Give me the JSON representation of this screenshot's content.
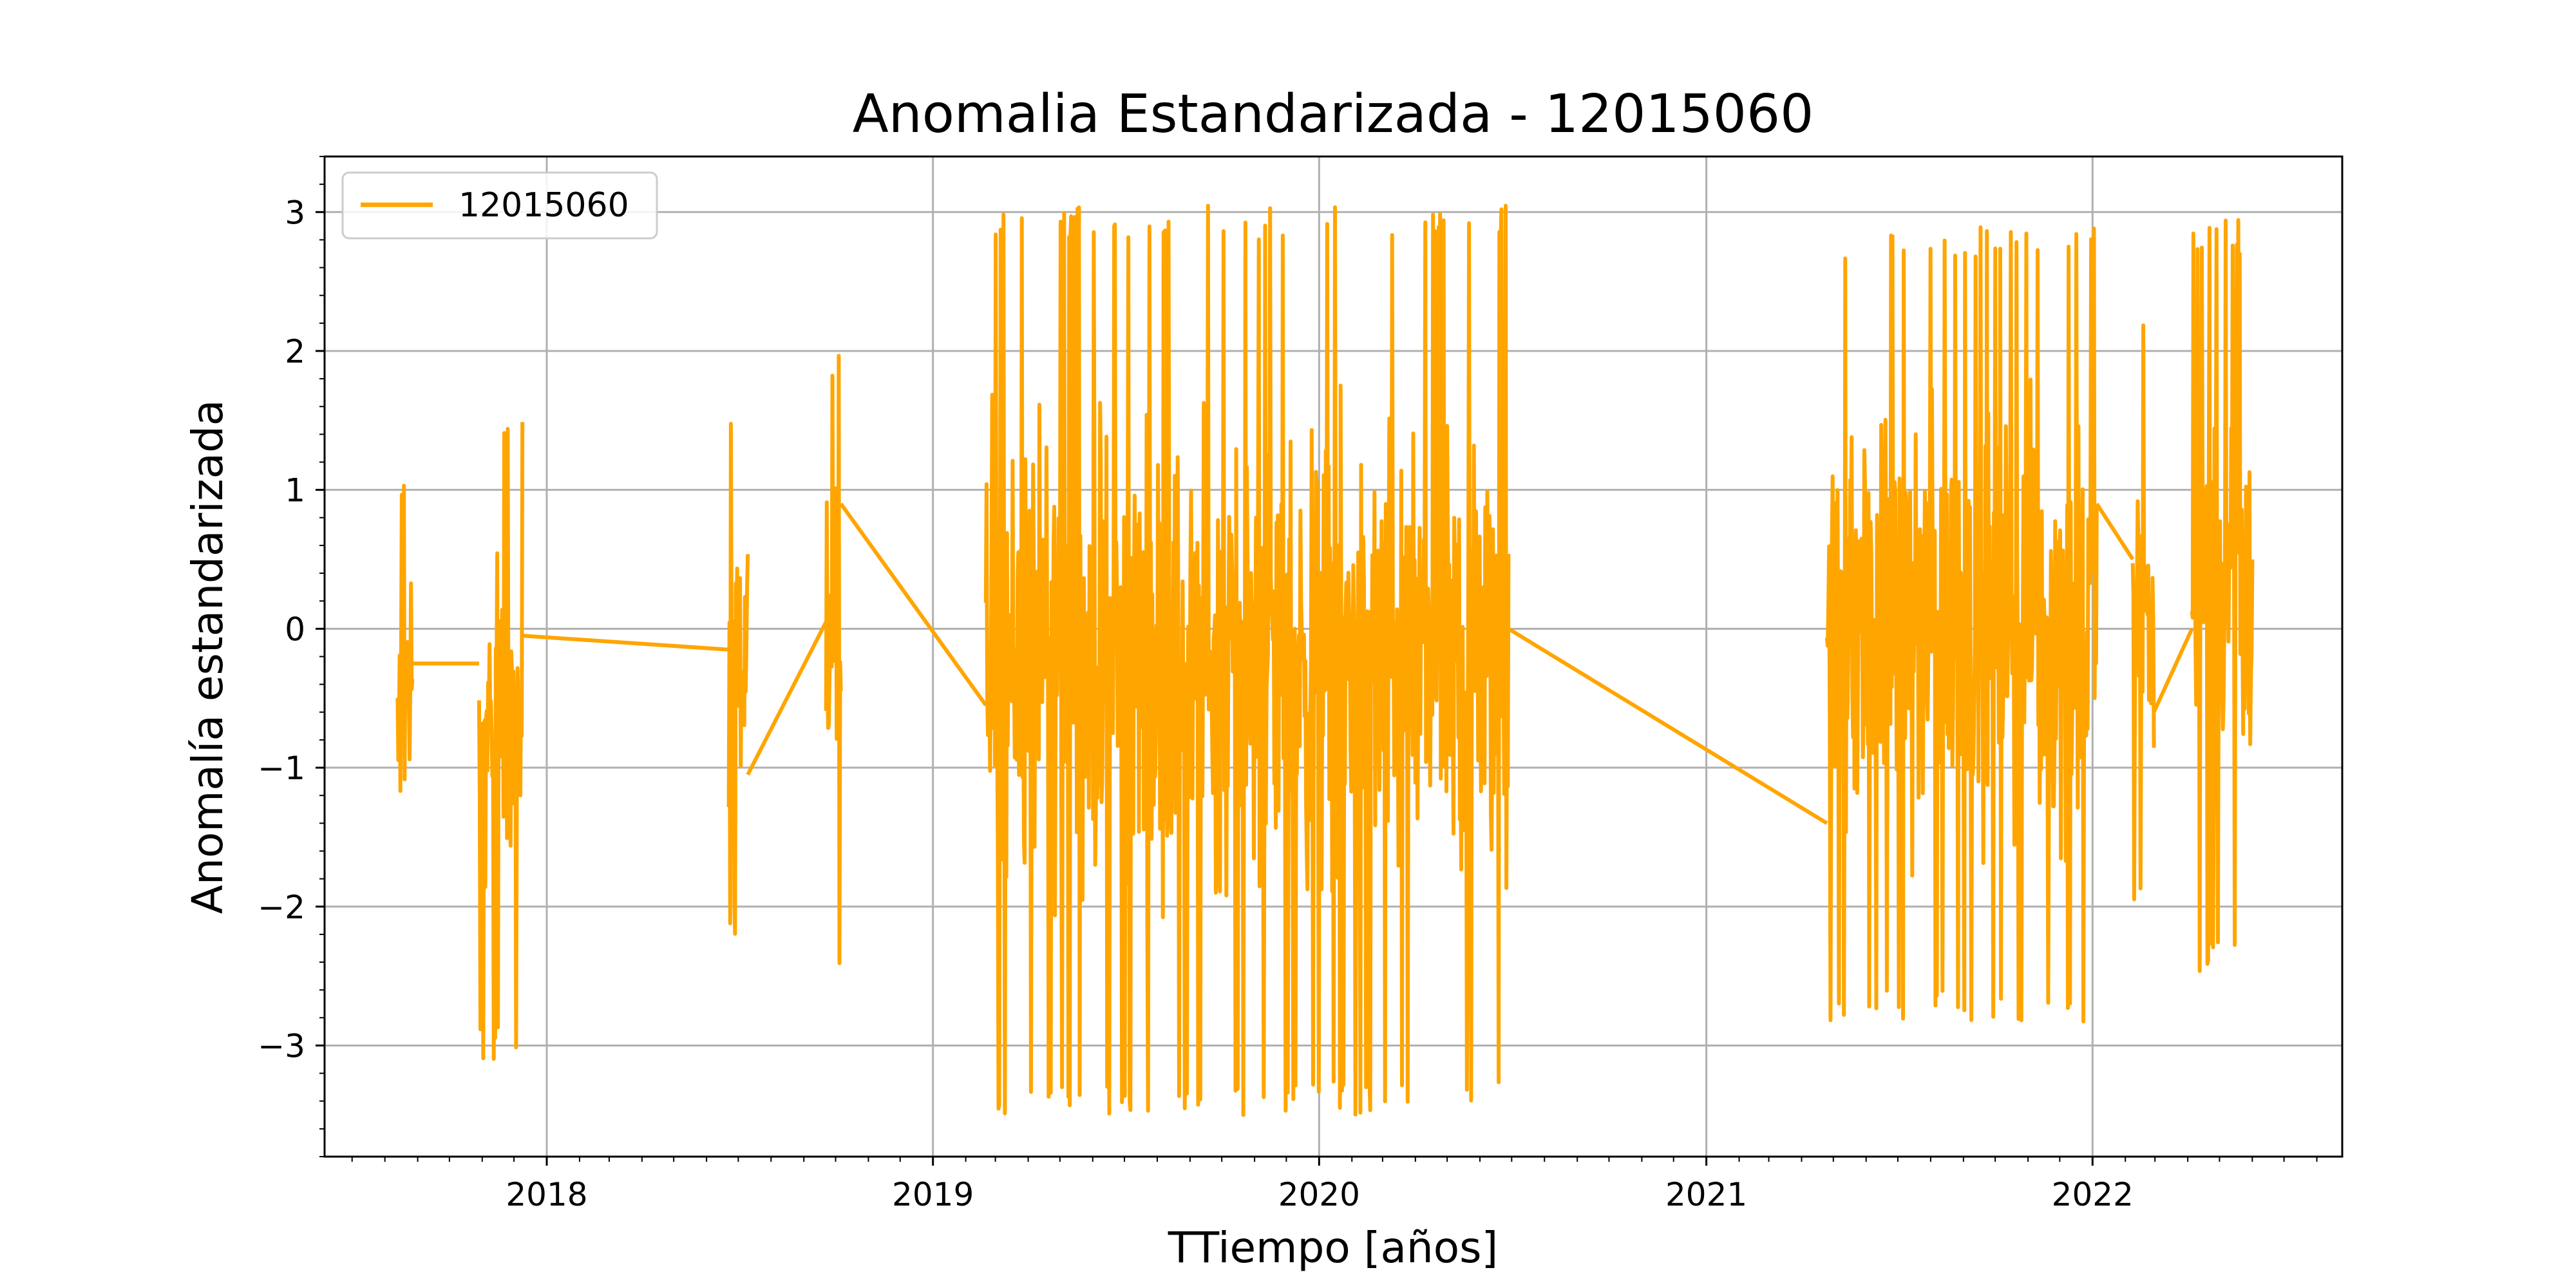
{
  "chart_data": {
    "type": "line",
    "title": "Anomalia Estandarizada - 12015060",
    "xlabel": "TTiempo [años]",
    "ylabel": "Anomalía estandarizada",
    "xlim": [
      "2017-06-05",
      "2022-08-25"
    ],
    "ylim": [
      -3.8,
      3.4
    ],
    "x_ticks": [
      "2018",
      "2019",
      "2020",
      "2021",
      "2022"
    ],
    "y_ticks": [
      -3,
      -2,
      -1,
      0,
      1,
      2,
      3
    ],
    "y_tick_labels": [
      "−3",
      "−2",
      "−1",
      "0",
      "1",
      "2",
      "3"
    ],
    "grid": true,
    "legend_position": "upper left",
    "series": [
      {
        "name": "12015060",
        "color": "#FFA500",
        "segments": [
          {
            "start": "2017-08-13",
            "end": "2017-08-27",
            "min": -2.0,
            "max": 1.1
          },
          {
            "start": "2017-10-29",
            "end": "2017-12-09",
            "min": -3.1,
            "max": 1.65
          },
          {
            "start": "2018-06-22",
            "end": "2018-07-10",
            "min": -2.2,
            "max": 1.7
          },
          {
            "start": "2018-09-22",
            "end": "2018-10-06",
            "min": -2.6,
            "max": 2.0
          },
          {
            "start": "2019-02-20",
            "end": "2020-06-28",
            "min": -3.5,
            "max": 3.05
          },
          {
            "start": "2021-04-25",
            "end": "2022-01-05",
            "min": -2.85,
            "max": 2.9
          },
          {
            "start": "2022-02-08",
            "end": "2022-02-28",
            "min": -2.0,
            "max": 2.3
          },
          {
            "start": "2022-04-05",
            "end": "2022-06-01",
            "min": -2.5,
            "max": 2.95
          }
        ],
        "bridges": [
          {
            "from": {
              "x": "2017-08-27",
              "y": -0.25
            },
            "to": {
              "x": "2017-10-29",
              "y": -0.25
            }
          },
          {
            "from": {
              "x": "2017-12-09",
              "y": -0.05
            },
            "to": {
              "x": "2018-06-22",
              "y": -0.15
            }
          },
          {
            "from": {
              "x": "2018-07-10",
              "y": -1.05
            },
            "to": {
              "x": "2018-09-22",
              "y": 0.05
            }
          },
          {
            "from": {
              "x": "2018-10-06",
              "y": 0.9
            },
            "to": {
              "x": "2019-02-20",
              "y": -0.55
            }
          },
          {
            "from": {
              "x": "2020-06-28",
              "y": 0.0
            },
            "to": {
              "x": "2021-04-25",
              "y": -1.4
            }
          },
          {
            "from": {
              "x": "2022-01-05",
              "y": 0.9
            },
            "to": {
              "x": "2022-02-08",
              "y": 0.5
            }
          },
          {
            "from": {
              "x": "2022-02-28",
              "y": -0.6
            },
            "to": {
              "x": "2022-04-05",
              "y": 0.0
            }
          }
        ]
      }
    ]
  }
}
